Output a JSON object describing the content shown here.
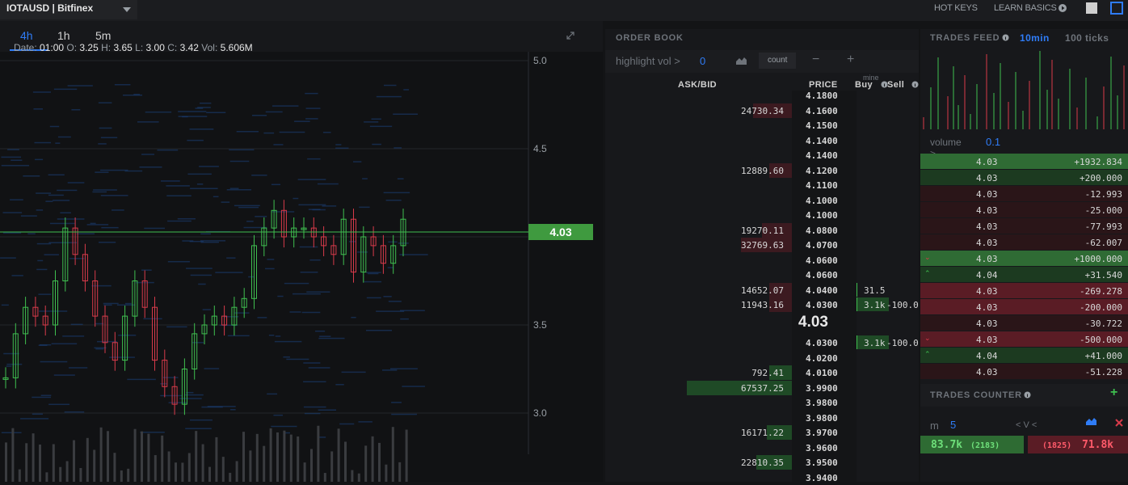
{
  "topbar": {
    "symbol": "IOTAUSD | Bitfinex",
    "hotkeys": "HOT KEYS",
    "learn": "LEARN BASICS"
  },
  "chart": {
    "tabs": [
      "4h",
      "1h",
      "5m"
    ],
    "info": {
      "date_label": "Date:",
      "date": "01:00",
      "o_label": "O:",
      "o": "3.25",
      "h_label": "H:",
      "h": "3.65",
      "l_label": "L:",
      "l": "3.00",
      "c_label": "C:",
      "c": "3.42",
      "vol_label": "Vol:",
      "vol": "5.606M"
    },
    "y_ticks": [
      "5.0",
      "4.5",
      "4.0",
      "3.5",
      "3.0"
    ],
    "last_price": "4.03"
  },
  "orderbook": {
    "title": "ORDER BOOK",
    "highlight_label": "highlight vol >",
    "highlight_value": "0",
    "count_label": "count",
    "minus": "−",
    "plus": "+",
    "cols": {
      "askbid": "ASK/BID",
      "price": "PRICE",
      "buy": "Buy",
      "sell": "Sell",
      "mine": "mine"
    },
    "mid_price": "4.03",
    "asks": [
      {
        "amt": "",
        "price": "4.1800",
        "buy": "",
        "sell": ""
      },
      {
        "amt": "24730.34",
        "price": "4.1600",
        "buy": "",
        "sell": ""
      },
      {
        "amt": "",
        "price": "4.1500",
        "buy": "",
        "sell": ""
      },
      {
        "amt": "",
        "price": "4.1400",
        "buy": "",
        "sell": ""
      },
      {
        "amt": "",
        "price": "4.1400",
        "buy": "",
        "sell": ""
      },
      {
        "amt": "12889.60",
        "price": "4.1200",
        "buy": "",
        "sell": ""
      },
      {
        "amt": "",
        "price": "4.1100",
        "buy": "",
        "sell": ""
      },
      {
        "amt": "",
        "price": "4.1000",
        "buy": "",
        "sell": ""
      },
      {
        "amt": "",
        "price": "4.1000",
        "buy": "",
        "sell": ""
      },
      {
        "amt": "19270.11",
        "price": "4.0800",
        "buy": "",
        "sell": ""
      },
      {
        "amt": "32769.63",
        "price": "4.0700",
        "buy": "",
        "sell": ""
      },
      {
        "amt": "",
        "price": "4.0600",
        "buy": "",
        "sell": ""
      },
      {
        "amt": "",
        "price": "4.0600",
        "buy": "",
        "sell": ""
      },
      {
        "amt": "14652.07",
        "price": "4.0400",
        "buy": "31.5",
        "sell": ""
      },
      {
        "amt": "11943.16",
        "price": "4.0300",
        "buy": "3.1k",
        "sell": "-100.0"
      }
    ],
    "bids": [
      {
        "amt": "",
        "price": "4.0300",
        "buy": "3.1k",
        "sell": "-100.0"
      },
      {
        "amt": "",
        "price": "4.0200",
        "buy": "",
        "sell": ""
      },
      {
        "amt": "792.41",
        "price": "4.0100",
        "buy": "",
        "sell": ""
      },
      {
        "amt": "67537.25",
        "price": "3.9900",
        "buy": "",
        "sell": ""
      },
      {
        "amt": "",
        "price": "3.9800",
        "buy": "",
        "sell": ""
      },
      {
        "amt": "",
        "price": "3.9800",
        "buy": "",
        "sell": ""
      },
      {
        "amt": "16171.22",
        "price": "3.9700",
        "buy": "",
        "sell": ""
      },
      {
        "amt": "",
        "price": "3.9600",
        "buy": "",
        "sell": ""
      },
      {
        "amt": "22810.35",
        "price": "3.9500",
        "buy": "",
        "sell": ""
      },
      {
        "amt": "",
        "price": "3.9400",
        "buy": "",
        "sell": ""
      }
    ]
  },
  "trades": {
    "title": "TRADES FEED",
    "tf_10m": "10min",
    "tf_100": "100 ticks",
    "volume_label": "volume >",
    "volume_value": "0.1",
    "rows": [
      {
        "p": "4.03",
        "a": "+1932.834",
        "side": "buy",
        "strong": true
      },
      {
        "p": "4.03",
        "a": "+200.000",
        "side": "buy",
        "strong": false
      },
      {
        "p": "4.03",
        "a": "-12.993",
        "side": "sell",
        "strong": false
      },
      {
        "p": "4.03",
        "a": "-25.000",
        "side": "sell",
        "strong": false
      },
      {
        "p": "4.03",
        "a": "-77.993",
        "side": "sell",
        "strong": false
      },
      {
        "p": "4.03",
        "a": "-62.007",
        "side": "sell",
        "strong": false
      },
      {
        "p": "4.03",
        "a": "+1000.000",
        "side": "buy",
        "strong": true,
        "arrow": "down"
      },
      {
        "p": "4.04",
        "a": "+31.540",
        "side": "buy",
        "strong": false,
        "arrow": "up"
      },
      {
        "p": "4.03",
        "a": "-269.278",
        "side": "sell",
        "strong": true
      },
      {
        "p": "4.03",
        "a": "-200.000",
        "side": "sell",
        "strong": true
      },
      {
        "p": "4.03",
        "a": "-30.722",
        "side": "sell",
        "strong": false
      },
      {
        "p": "4.03",
        "a": "-500.000",
        "side": "sell",
        "strong": true,
        "arrow": "down"
      },
      {
        "p": "4.04",
        "a": "+41.000",
        "side": "buy",
        "strong": false,
        "arrow": "up"
      },
      {
        "p": "4.03",
        "a": "-51.228",
        "side": "sell",
        "strong": false
      }
    ],
    "counter_title": "TRADES COUNTER",
    "m_label": "m",
    "m_value": "5",
    "vnav": "< V <",
    "buy_total": "83.7k",
    "buy_count": "(2183)",
    "sell_count": "(1825)",
    "sell_total": "71.8k"
  },
  "colors": {
    "green": "#3fbf4f",
    "red": "#d83a4a",
    "blue": "#2f7cf6"
  }
}
